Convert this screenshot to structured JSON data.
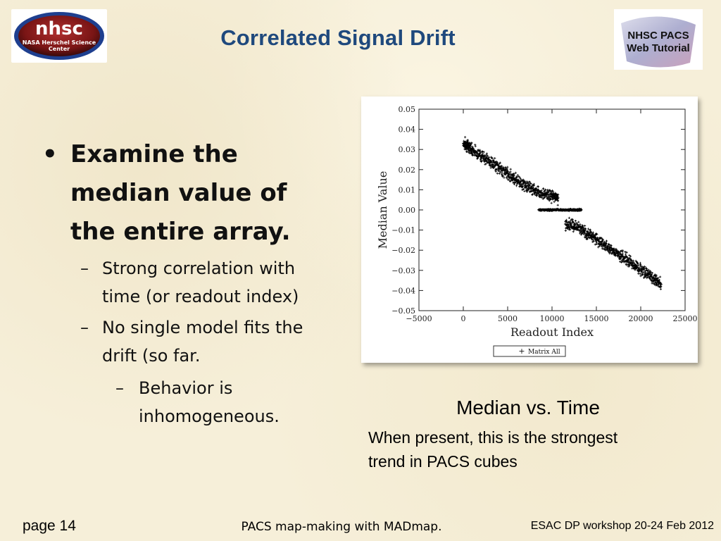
{
  "slide": {
    "title": "Correlated Signal Drift",
    "logo_left_text": [
      "nhsc",
      "NASA Herschel Science",
      "Center"
    ],
    "logo_right_text": [
      "NHSC PACS",
      "Web Tutorial"
    ]
  },
  "bullets": {
    "main": {
      "marker": "•",
      "lines": [
        "Examine the",
        "median value of",
        "the entire array."
      ]
    },
    "sub1": {
      "marker": "–",
      "lines": [
        "Strong correlation with",
        "time (or readout index)"
      ]
    },
    "sub2": {
      "marker": "–",
      "lines": [
        "No single model fits the",
        "drift (so far."
      ]
    },
    "sub3": {
      "marker": "–",
      "lines": [
        "Behavior is",
        "inhomogeneous."
      ]
    }
  },
  "caption": {
    "title": "Median vs. Time",
    "body_lines": [
      "When present, this is the strongest",
      "trend in PACS cubes"
    ]
  },
  "footer": {
    "page": "page 14",
    "center": "PACS map-making with MADmap.",
    "right": "ESAC DP workshop 20-24 Feb 2012"
  },
  "colors": {
    "title": "#1f497d",
    "logo_oval_red": "#8b1a1a",
    "logo_oval_blue": "#1e3f8f"
  },
  "chart_data": {
    "type": "scatter",
    "xlabel": "Readout Index",
    "ylabel": "Median Value",
    "xlim": [
      -5000,
      25000
    ],
    "ylim": [
      -0.05,
      0.05
    ],
    "xticks": [
      -5000,
      0,
      5000,
      10000,
      15000,
      20000,
      25000
    ],
    "yticks": [
      0.05,
      0.04,
      0.03,
      0.02,
      0.01,
      0.0,
      -0.01,
      -0.02,
      -0.03,
      -0.04,
      -0.05
    ],
    "xtick_labels": [
      "−5000",
      "0",
      "5000",
      "10000",
      "15000",
      "20000",
      "25000"
    ],
    "ytick_labels": [
      "0.05",
      "0.04",
      "0.03",
      "0.02",
      "0.01",
      "0.00",
      "−0.01",
      "−0.02",
      "−0.03",
      "−0.04",
      "−0.05"
    ],
    "legend": {
      "label": "Matrix All",
      "marker": "+",
      "placement": "bottom-center"
    },
    "grid": false,
    "series": [
      {
        "name": "Matrix All",
        "segment": "early",
        "x": [
          0,
          500,
          1000,
          2000,
          3000,
          4000,
          5000,
          6000,
          7000,
          8000,
          9000,
          10000,
          10700
        ],
        "y": [
          0.033,
          0.032,
          0.03,
          0.027,
          0.024,
          0.021,
          0.018,
          0.015,
          0.012,
          0.01,
          0.008,
          0.007,
          0.006
        ]
      },
      {
        "name": "Matrix All",
        "segment": "zero",
        "x": [
          8500,
          9500,
          10000,
          11000,
          12000,
          12800,
          13300
        ],
        "y": [
          0.0,
          0.0,
          0.0,
          0.0,
          0.0,
          0.0,
          0.0
        ]
      },
      {
        "name": "Matrix All",
        "segment": "late",
        "x": [
          11500,
          12500,
          13500,
          14500,
          15500,
          16500,
          17500,
          18500,
          19500,
          20500,
          21500,
          22300
        ],
        "y": [
          -0.007,
          -0.008,
          -0.01,
          -0.013,
          -0.016,
          -0.019,
          -0.022,
          -0.025,
          -0.028,
          -0.031,
          -0.034,
          -0.037
        ]
      }
    ]
  }
}
